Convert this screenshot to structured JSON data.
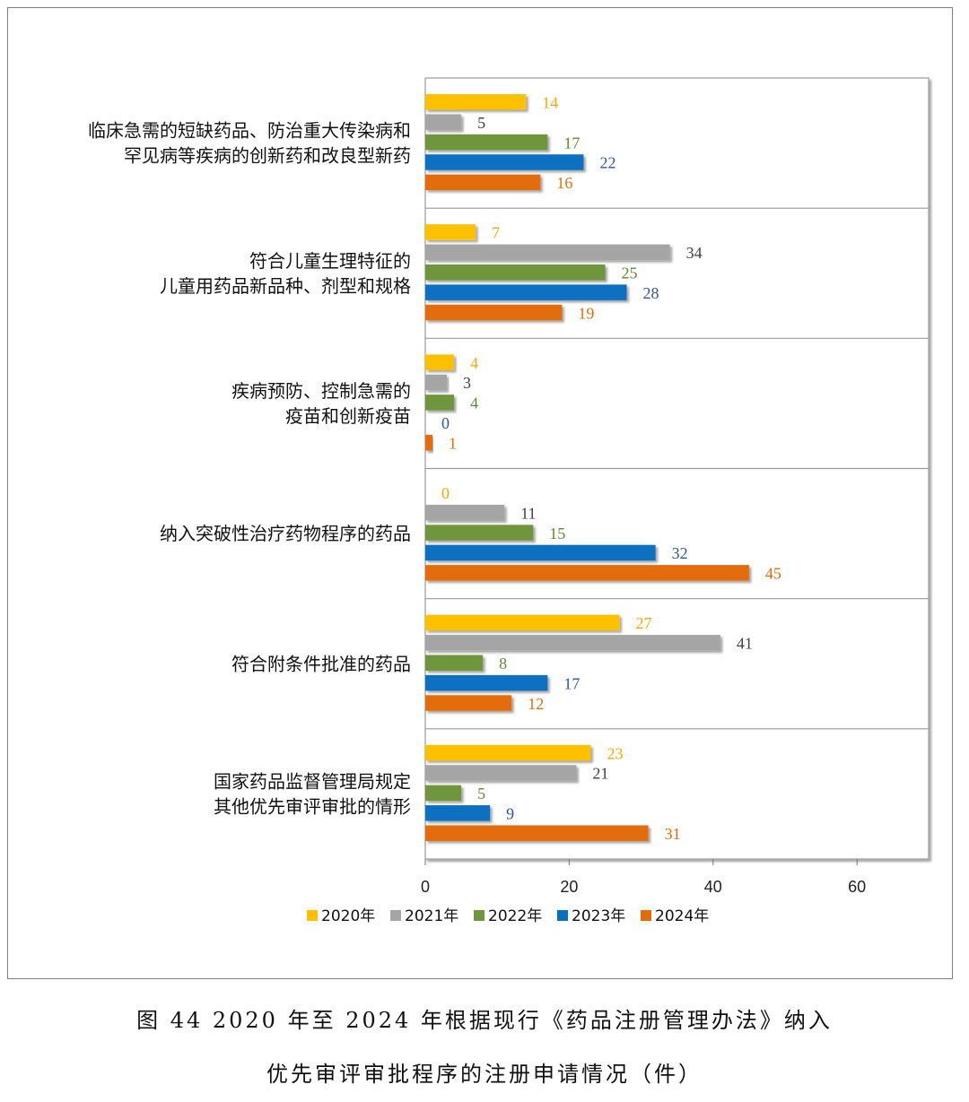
{
  "chart_data": {
    "type": "bar",
    "orientation": "horizontal",
    "categories": [
      [
        "临床急需的短缺药品、防治重大传染病和",
        "罕见病等疾病的创新药和改良型新药"
      ],
      [
        "符合儿童生理特征的",
        "儿童用药品新品种、剂型和规格"
      ],
      [
        "疾病预防、控制急需的",
        "疫苗和创新疫苗"
      ],
      [
        "纳入突破性治疗药物程序的药品"
      ],
      [
        "符合附条件批准的药品"
      ],
      [
        "国家药品监督管理局规定",
        "其他优先审评审批的情形"
      ]
    ],
    "series": [
      {
        "name": "2020年",
        "color": "#FFC000",
        "label_color": "#F5A800",
        "values": [
          14,
          7,
          4,
          0,
          27,
          23
        ]
      },
      {
        "name": "2021年",
        "color": "#A5A5A5",
        "label_color": "#404040",
        "values": [
          5,
          34,
          3,
          11,
          41,
          21
        ]
      },
      {
        "name": "2022年",
        "color": "#70963E",
        "label_color": "#5E8A2E",
        "values": [
          17,
          25,
          4,
          15,
          8,
          5
        ]
      },
      {
        "name": "2023年",
        "color": "#0870C0",
        "label_color": "#2F5597",
        "values": [
          22,
          28,
          0,
          32,
          17,
          9
        ]
      },
      {
        "name": "2024年",
        "color": "#E36C09",
        "label_color": "#E36C09",
        "values": [
          16,
          19,
          1,
          45,
          12,
          31
        ]
      }
    ],
    "xlim": [
      0,
      70
    ],
    "xticks": [
      0,
      20,
      40,
      60
    ],
    "legend": "bottom",
    "grid": "horizontal category separators"
  },
  "caption": {
    "line1": "图 44 2020 年至 2024 年根据现行《药品注册管理办法》纳入",
    "line2": "优先审评审批程序的注册申请情况（件）"
  }
}
